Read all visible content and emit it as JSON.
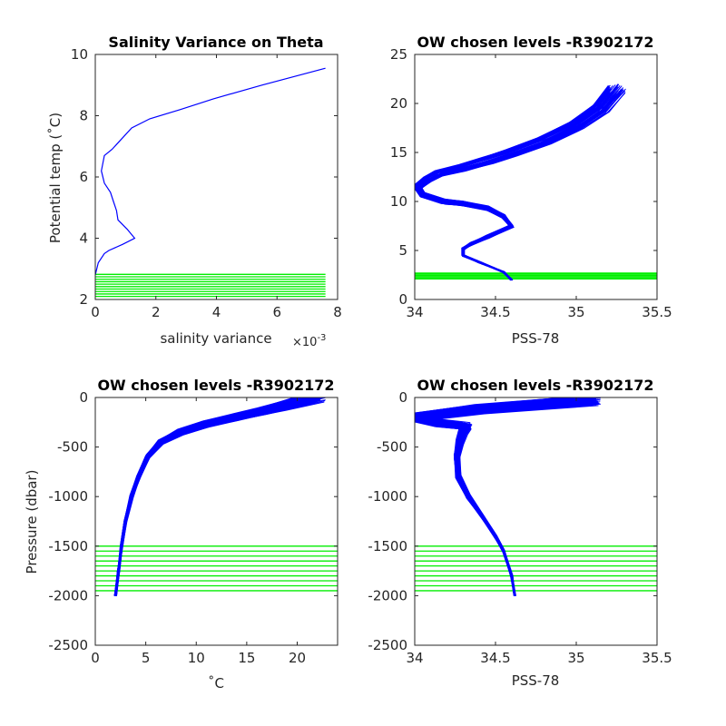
{
  "chart_data": [
    {
      "type": "line",
      "title": "Salinity Variance on Theta",
      "xlabel": "salinity variance",
      "x_exponent": "×10",
      "x_exponent_power": "-3",
      "ylabel": "Potential temp (˚C)",
      "xlim": [
        0,
        8
      ],
      "ylim": [
        2,
        10
      ],
      "xticks": [
        0,
        2,
        4,
        6,
        8
      ],
      "yticks": [
        2,
        4,
        6,
        8,
        10
      ],
      "xtick_labels": [
        "0",
        "2",
        "4",
        "6",
        "8"
      ],
      "ytick_labels": [
        "2",
        "4",
        "6",
        "8",
        "10"
      ],
      "line_color": "#0000ff",
      "level_color": "#00ee00",
      "variance_curve": {
        "x": [
          0.0,
          0.1,
          0.3,
          0.45,
          0.9,
          1.3,
          1.05,
          0.75,
          0.7,
          0.6,
          0.5,
          0.3,
          0.2,
          0.3,
          0.55,
          1.2,
          1.8,
          2.8,
          3.9,
          5.5,
          7.6
        ],
        "y": [
          2.8,
          3.2,
          3.5,
          3.6,
          3.8,
          4.0,
          4.3,
          4.6,
          4.9,
          5.2,
          5.5,
          5.8,
          6.2,
          6.7,
          6.9,
          7.6,
          7.9,
          8.2,
          8.55,
          9.0,
          9.55
        ]
      },
      "levels": [
        2.1,
        2.18,
        2.26,
        2.34,
        2.42,
        2.5,
        2.58,
        2.66,
        2.74,
        2.82
      ],
      "levels_x_range": [
        0,
        7.6
      ]
    },
    {
      "type": "line",
      "title": "OW chosen levels -R3902172",
      "xlabel": "PSS-78",
      "ylabel": "",
      "xlim": [
        34,
        35.5
      ],
      "ylim": [
        0,
        25
      ],
      "xticks": [
        34,
        34.5,
        35,
        35.5
      ],
      "yticks": [
        0,
        5,
        10,
        15,
        20,
        25
      ],
      "xtick_labels": [
        "34",
        "34.5",
        "35",
        "35.5"
      ],
      "ytick_labels": [
        "0",
        "5",
        "10",
        "15",
        "20",
        "25"
      ],
      "line_color": "#0000ff",
      "level_color": "#00ee00",
      "profile_count": 60,
      "base_profile": {
        "x": [
          34.6,
          34.55,
          34.4,
          34.3,
          34.3,
          34.35,
          34.45,
          34.6,
          34.55,
          34.45,
          34.3,
          34.18,
          34.05,
          34.02,
          34.08,
          34.15,
          34.3,
          34.45,
          34.6,
          34.8,
          35.0,
          35.15,
          35.25
        ],
        "y": [
          2.0,
          2.8,
          3.8,
          4.5,
          5.2,
          5.7,
          6.4,
          7.5,
          8.5,
          9.3,
          9.8,
          10.0,
          10.7,
          11.5,
          12.3,
          12.9,
          13.5,
          14.2,
          15.0,
          16.2,
          17.8,
          19.5,
          21.5
        ]
      },
      "levels": [
        2.1,
        2.22,
        2.34,
        2.46,
        2.58,
        2.7
      ],
      "levels_x_range": [
        34,
        35.5
      ]
    },
    {
      "type": "line",
      "title": "OW chosen levels -R3902172",
      "xlabel": "˚C",
      "ylabel": "Pressure (dbar)",
      "xlim": [
        0,
        24
      ],
      "ylim": [
        -2500,
        0
      ],
      "xticks": [
        0,
        5,
        10,
        15,
        20
      ],
      "yticks": [
        -2500,
        -2000,
        -1500,
        -1000,
        -500,
        0
      ],
      "xtick_labels": [
        "0",
        "5",
        "10",
        "15",
        "20"
      ],
      "ytick_labels": [
        "-2500",
        "-2000",
        "-1500",
        "-1000",
        "-500",
        "0"
      ],
      "line_color": "#0000ff",
      "level_color": "#00ee00",
      "profile_count": 60,
      "base_profile": {
        "x": [
          2.0,
          2.3,
          2.6,
          3.0,
          3.6,
          4.3,
          5.2,
          6.5,
          8.5,
          11.0,
          14.0,
          16.5,
          18.5,
          20.5,
          22.0
        ],
        "y": [
          -2000,
          -1750,
          -1500,
          -1250,
          -1000,
          -800,
          -600,
          -450,
          -350,
          -270,
          -200,
          -140,
          -90,
          -40,
          0
        ]
      },
      "levels": [
        -1500,
        -1550,
        -1600,
        -1650,
        -1700,
        -1750,
        -1800,
        -1850,
        -1900,
        -1950
      ],
      "levels_x_range": [
        0,
        24
      ]
    },
    {
      "type": "line",
      "title": "OW chosen levels -R3902172",
      "xlabel": "PSS-78",
      "ylabel": "",
      "xlim": [
        34,
        35.5
      ],
      "ylim": [
        -2500,
        0
      ],
      "xticks": [
        34,
        34.5,
        35,
        35.5
      ],
      "yticks": [
        -2500,
        -2000,
        -1500,
        -1000,
        -500,
        0
      ],
      "xtick_labels": [
        "34",
        "34.5",
        "35",
        "35.5"
      ],
      "ytick_labels": [
        "-2500",
        "-2000",
        "-1500",
        "-1000",
        "-500",
        "0"
      ],
      "line_color": "#0000ff",
      "level_color": "#00ee00",
      "profile_count": 60,
      "base_profile": {
        "x": [
          34.62,
          34.6,
          34.55,
          34.5,
          34.42,
          34.33,
          34.27,
          34.26,
          34.28,
          34.3,
          34.32,
          34.15,
          34.02,
          34.4,
          35.1
        ],
        "y": [
          -2000,
          -1800,
          -1550,
          -1400,
          -1200,
          -1000,
          -800,
          -600,
          -450,
          -350,
          -290,
          -260,
          -200,
          -120,
          -30
        ]
      },
      "levels": [
        -1500,
        -1550,
        -1600,
        -1650,
        -1700,
        -1750,
        -1800,
        -1850,
        -1900,
        -1950
      ],
      "levels_x_range": [
        34,
        35.5
      ]
    }
  ]
}
